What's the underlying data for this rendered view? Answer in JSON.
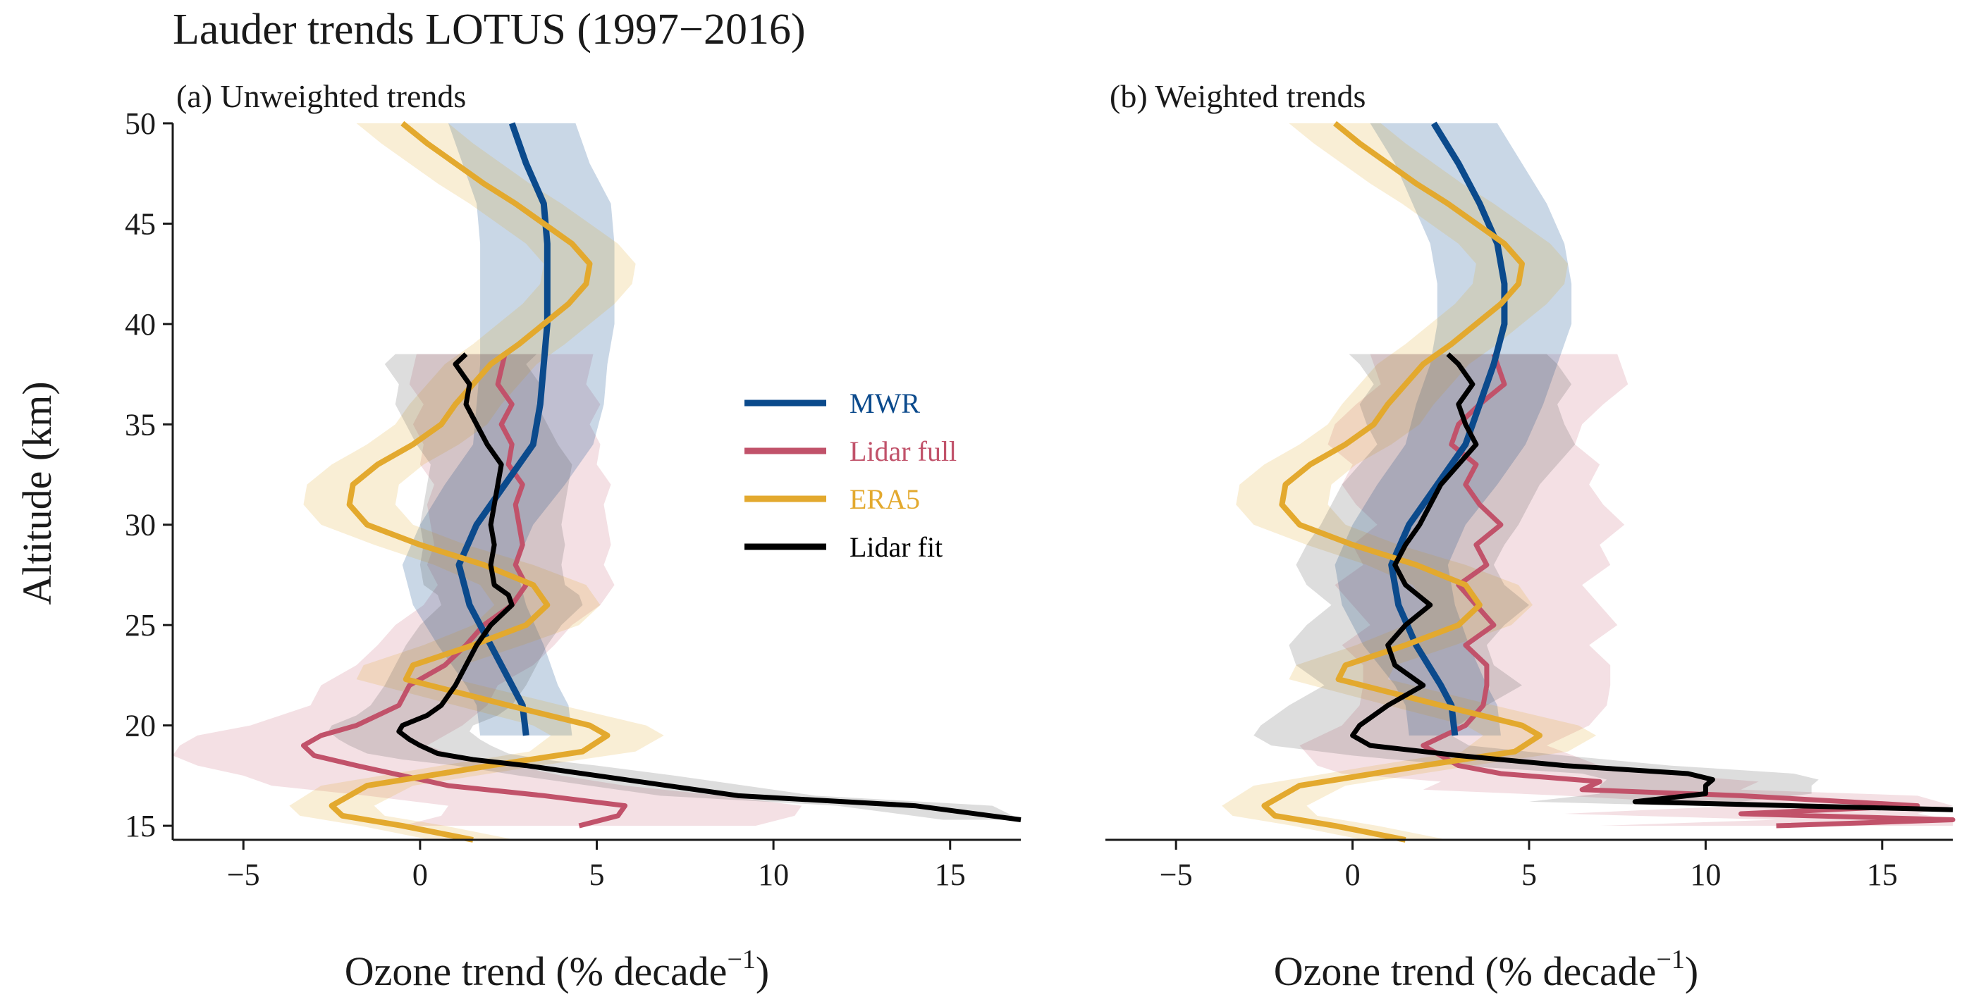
{
  "figure_title": "Lauder trends LOTUS (1997−2016)",
  "ylabel": "Altitude (km)",
  "xlabel_main": "Ozone trend (% decade",
  "xlabel_sup": "−1",
  "xlabel_close": ")",
  "colors": {
    "MWR": "#0b4a8c",
    "Lidar full": "#c1526a",
    "ERA5": "#e3a92e",
    "Lidar fit": "#000000"
  },
  "chart_data": [
    {
      "type": "line",
      "title": "(a) Unweighted trends",
      "xlabel": "Ozone trend (% decade⁻¹)",
      "ylabel": "Altitude (km)",
      "xlim": [
        -7,
        17
      ],
      "ylim": [
        14.3,
        50
      ],
      "xticks": [
        -5,
        0,
        5,
        10,
        15
      ],
      "yticks": [
        15,
        20,
        25,
        30,
        35,
        40,
        45,
        50
      ],
      "legend": {
        "position": "center-right",
        "entries": [
          "MWR",
          "Lidar full",
          "ERA5",
          "Lidar fit"
        ]
      },
      "series": [
        {
          "name": "MWR",
          "altitude": [
            19.5,
            21,
            22,
            24,
            26,
            28,
            30,
            32,
            34,
            36,
            38,
            40,
            42,
            44,
            46,
            48,
            50
          ],
          "trend": [
            3.0,
            2.9,
            2.6,
            2.0,
            1.4,
            1.1,
            1.6,
            2.4,
            3.2,
            3.4,
            3.5,
            3.6,
            3.6,
            3.6,
            3.5,
            3.0,
            2.6
          ],
          "band": [
            1.3,
            1.3,
            1.3,
            1.5,
            1.6,
            1.6,
            1.6,
            1.7,
            1.7,
            1.8,
            1.8,
            1.9,
            1.9,
            1.9,
            1.9,
            1.8,
            1.8
          ]
        },
        {
          "name": "Lidar full",
          "altitude": [
            15,
            15.5,
            16,
            16.5,
            17,
            17.5,
            18,
            18.5,
            19,
            19.5,
            20,
            21,
            22,
            23,
            24,
            25,
            26,
            27,
            28,
            29,
            30,
            31,
            32,
            33,
            34,
            35,
            36,
            37,
            38.5
          ],
          "trend": [
            4.5,
            5.6,
            5.8,
            3.5,
            0.8,
            -0.5,
            -1.8,
            -3.0,
            -3.3,
            -2.8,
            -1.8,
            -0.6,
            -0.3,
            0.7,
            1.3,
            1.8,
            2.6,
            3.0,
            2.7,
            2.9,
            2.8,
            2.7,
            2.9,
            2.5,
            2.6,
            2.3,
            2.6,
            2.2,
            2.4
          ],
          "band": [
            5,
            5,
            5,
            5,
            5,
            4.5,
            4.5,
            4,
            3.5,
            3.5,
            3,
            2.5,
            2.5,
            2.5,
            2.5,
            2.5,
            2.5,
            2.5,
            2.5,
            2.5,
            2.5,
            2.5,
            2.5,
            2.5,
            2.5,
            2.5,
            2.5,
            2.5,
            2.5
          ]
        },
        {
          "name": "ERA5",
          "altitude": [
            14.3,
            15,
            15.5,
            16,
            17,
            18,
            18.7,
            19.5,
            20,
            21,
            22.3,
            23,
            24,
            25,
            26,
            27,
            28,
            29,
            30,
            31,
            32,
            33,
            34,
            35,
            36,
            37,
            38,
            39,
            40,
            41,
            42,
            43,
            44,
            45,
            46,
            47,
            48,
            49,
            50
          ],
          "trend": [
            1.5,
            -0.5,
            -2.2,
            -2.5,
            -1.5,
            2.0,
            4.6,
            5.3,
            4.8,
            2.5,
            -0.4,
            -0.2,
            1.5,
            3.0,
            3.6,
            3.2,
            1.8,
            0.0,
            -1.5,
            -2.0,
            -1.9,
            -1.2,
            -0.2,
            0.6,
            1.0,
            1.5,
            2.0,
            2.8,
            3.5,
            4.2,
            4.7,
            4.8,
            4.3,
            3.5,
            2.7,
            1.8,
            1.0,
            0.2,
            -0.5
          ],
          "band": [
            1.2,
            1.2,
            1.2,
            1.2,
            1.3,
            1.4,
            1.5,
            1.6,
            1.6,
            1.5,
            1.4,
            1.4,
            1.4,
            1.5,
            1.5,
            1.5,
            1.4,
            1.3,
            1.3,
            1.3,
            1.3,
            1.3,
            1.3,
            1.3,
            1.3,
            1.3,
            1.3,
            1.3,
            1.3,
            1.3,
            1.3,
            1.3,
            1.3,
            1.3,
            1.3,
            1.3,
            1.3,
            1.3,
            1.3
          ]
        },
        {
          "name": "Lidar fit",
          "altitude": [
            15.3,
            16,
            16.5,
            17,
            17.5,
            18,
            18.3,
            18.6,
            19,
            19.3,
            19.7,
            20,
            20.5,
            21,
            22,
            23,
            24,
            25,
            26,
            26.5,
            27,
            28,
            29,
            30,
            31,
            32,
            33,
            34,
            35,
            36,
            37,
            38,
            38.5
          ],
          "trend": [
            17.0,
            14.0,
            9.0,
            7.0,
            5.0,
            3.0,
            1.5,
            0.5,
            0.0,
            -0.3,
            -0.6,
            -0.5,
            0.2,
            0.6,
            1.0,
            1.3,
            1.6,
            2.0,
            2.6,
            2.5,
            2.1,
            2.0,
            2.1,
            2.0,
            2.1,
            2.2,
            2.3,
            1.9,
            1.6,
            1.3,
            1.4,
            1.0,
            1.3
          ],
          "band": [
            2.2,
            2.2,
            2.2,
            2.2,
            2.2,
            2.0,
            2.0,
            2.0,
            2.0,
            2.0,
            2.0,
            2.0,
            2.0,
            2.0,
            2.0,
            2.0,
            2.0,
            2.0,
            2.0,
            2.0,
            2.0,
            2.0,
            2.0,
            2.0,
            2.0,
            2.0,
            2.0,
            2.0,
            2.0,
            2.0,
            2.0,
            2.0,
            2.0
          ]
        }
      ]
    },
    {
      "type": "line",
      "title": "(b) Weighted trends",
      "xlabel": "Ozone trend (% decade⁻¹)",
      "ylabel": "",
      "xlim": [
        -7,
        17
      ],
      "ylim": [
        14.3,
        50
      ],
      "xticks": [
        -5,
        0,
        5,
        10,
        15
      ],
      "yticks": [],
      "series": [
        {
          "name": "MWR",
          "altitude": [
            19.5,
            21,
            22,
            24,
            26,
            28,
            30,
            32,
            34,
            36,
            38,
            40,
            42,
            44,
            46,
            48,
            50
          ],
          "trend": [
            2.9,
            2.8,
            2.5,
            1.8,
            1.3,
            1.1,
            1.6,
            2.4,
            3.2,
            3.6,
            4.0,
            4.3,
            4.3,
            4.1,
            3.6,
            3.0,
            2.3
          ],
          "band": [
            1.3,
            1.3,
            1.3,
            1.5,
            1.6,
            1.6,
            1.6,
            1.7,
            1.7,
            1.8,
            1.8,
            1.9,
            1.9,
            1.9,
            1.9,
            1.8,
            1.8
          ]
        },
        {
          "name": "Lidar full",
          "altitude": [
            15,
            15.3,
            15.6,
            16,
            16.5,
            16.8,
            17.2,
            17.6,
            18,
            19,
            20,
            21,
            22,
            23,
            24,
            25,
            26,
            27,
            28,
            29,
            30,
            31,
            32,
            33,
            34,
            35,
            36,
            37,
            38.5
          ],
          "trend": [
            12.0,
            17.0,
            11.0,
            16.0,
            11.0,
            6.5,
            7.0,
            4.2,
            3.0,
            2.0,
            3.2,
            3.7,
            3.8,
            3.8,
            3.2,
            4.0,
            3.5,
            3.0,
            3.8,
            3.5,
            4.2,
            3.6,
            3.2,
            3.5,
            2.8,
            3.0,
            3.6,
            4.3,
            4.0
          ],
          "band": [
            5,
            5,
            5,
            5,
            5,
            4.5,
            4.5,
            4.5,
            4,
            3.5,
            3.5,
            3.5,
            3.5,
            3.5,
            3.5,
            3.5,
            3.5,
            3.5,
            3.5,
            3.5,
            3.5,
            3.5,
            3.5,
            3.5,
            3.5,
            3.5,
            3.5,
            3.5,
            3.5
          ]
        },
        {
          "name": "ERA5",
          "altitude": [
            14.3,
            15,
            15.5,
            16,
            17,
            18,
            18.7,
            19.5,
            20,
            21,
            22.3,
            23,
            24,
            25,
            26,
            27,
            28,
            29,
            30,
            31,
            32,
            33,
            34,
            35,
            36,
            37,
            38,
            39,
            40,
            41,
            42,
            43,
            44,
            45,
            46,
            47,
            48,
            49,
            50
          ],
          "trend": [
            1.5,
            -0.5,
            -2.2,
            -2.5,
            -1.5,
            2.0,
            4.6,
            5.3,
            4.8,
            2.5,
            -0.4,
            -0.2,
            1.5,
            3.0,
            3.6,
            3.2,
            1.8,
            0.0,
            -1.5,
            -2.0,
            -1.9,
            -1.2,
            -0.2,
            0.6,
            1.0,
            1.5,
            2.0,
            2.8,
            3.5,
            4.2,
            4.7,
            4.8,
            4.3,
            3.5,
            2.7,
            1.8,
            1.0,
            0.2,
            -0.5
          ],
          "band": [
            1.2,
            1.2,
            1.2,
            1.2,
            1.3,
            1.4,
            1.5,
            1.6,
            1.6,
            1.5,
            1.4,
            1.4,
            1.4,
            1.5,
            1.5,
            1.5,
            1.4,
            1.3,
            1.3,
            1.3,
            1.3,
            1.3,
            1.3,
            1.3,
            1.3,
            1.3,
            1.3,
            1.3,
            1.3,
            1.3,
            1.3,
            1.3,
            1.3,
            1.3,
            1.3,
            1.3,
            1.3,
            1.3,
            1.3
          ]
        },
        {
          "name": "Lidar fit",
          "altitude": [
            15.8,
            16.2,
            16.6,
            17,
            17.3,
            17.6,
            18,
            18.5,
            19,
            19.5,
            20,
            21,
            22,
            23,
            24,
            25,
            26,
            27,
            28,
            29,
            30,
            31,
            32,
            33,
            34,
            35,
            36,
            37,
            38,
            38.5
          ],
          "trend": [
            17.0,
            8.0,
            10.0,
            10.0,
            10.2,
            9.5,
            6.0,
            3.0,
            0.5,
            0.0,
            0.2,
            1.0,
            2.0,
            1.2,
            1.0,
            1.5,
            2.2,
            1.5,
            1.2,
            1.5,
            1.9,
            2.2,
            2.5,
            3.0,
            3.5,
            3.2,
            3.0,
            3.4,
            3.0,
            2.7
          ],
          "band": [
            3,
            3,
            3,
            3,
            3,
            3,
            3,
            3,
            2.8,
            2.8,
            2.8,
            2.8,
            2.8,
            2.8,
            2.8,
            2.8,
            2.8,
            2.8,
            2.8,
            2.8,
            2.8,
            2.8,
            2.8,
            2.8,
            2.8,
            2.8,
            2.8,
            2.8,
            2.8,
            2.8
          ]
        }
      ]
    }
  ]
}
